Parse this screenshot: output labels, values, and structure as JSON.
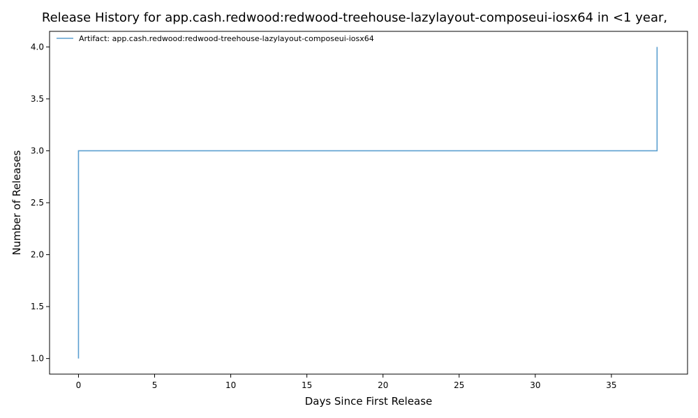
{
  "chart_data": {
    "type": "line",
    "title": "Release History for app.cash.redwood:redwood-treehouse-lazylayout-composeui-iosx64 in <1 year,",
    "xlabel": "Days Since First Release",
    "ylabel": "Number of Releases",
    "xlim": [
      -1.9,
      40.0
    ],
    "ylim": [
      0.85,
      4.15
    ],
    "xticks": [
      0,
      5,
      10,
      15,
      20,
      25,
      30,
      35
    ],
    "xtick_labels": [
      "0",
      "5",
      "10",
      "15",
      "20",
      "25",
      "30",
      "35"
    ],
    "yticks": [
      1.0,
      1.5,
      2.0,
      2.5,
      3.0,
      3.5,
      4.0
    ],
    "ytick_labels": [
      "1.0",
      "1.5",
      "2.0",
      "2.5",
      "3.0",
      "3.5",
      "4.0"
    ],
    "grid": false,
    "legend_position": "top-left",
    "series": [
      {
        "name": "Artifact: app.cash.redwood:redwood-treehouse-lazylayout-composeui-iosx64",
        "color": "#5b9fd0",
        "step": "post",
        "x": [
          0,
          0,
          0,
          38
        ],
        "y": [
          1,
          2,
          3,
          4
        ]
      }
    ]
  }
}
